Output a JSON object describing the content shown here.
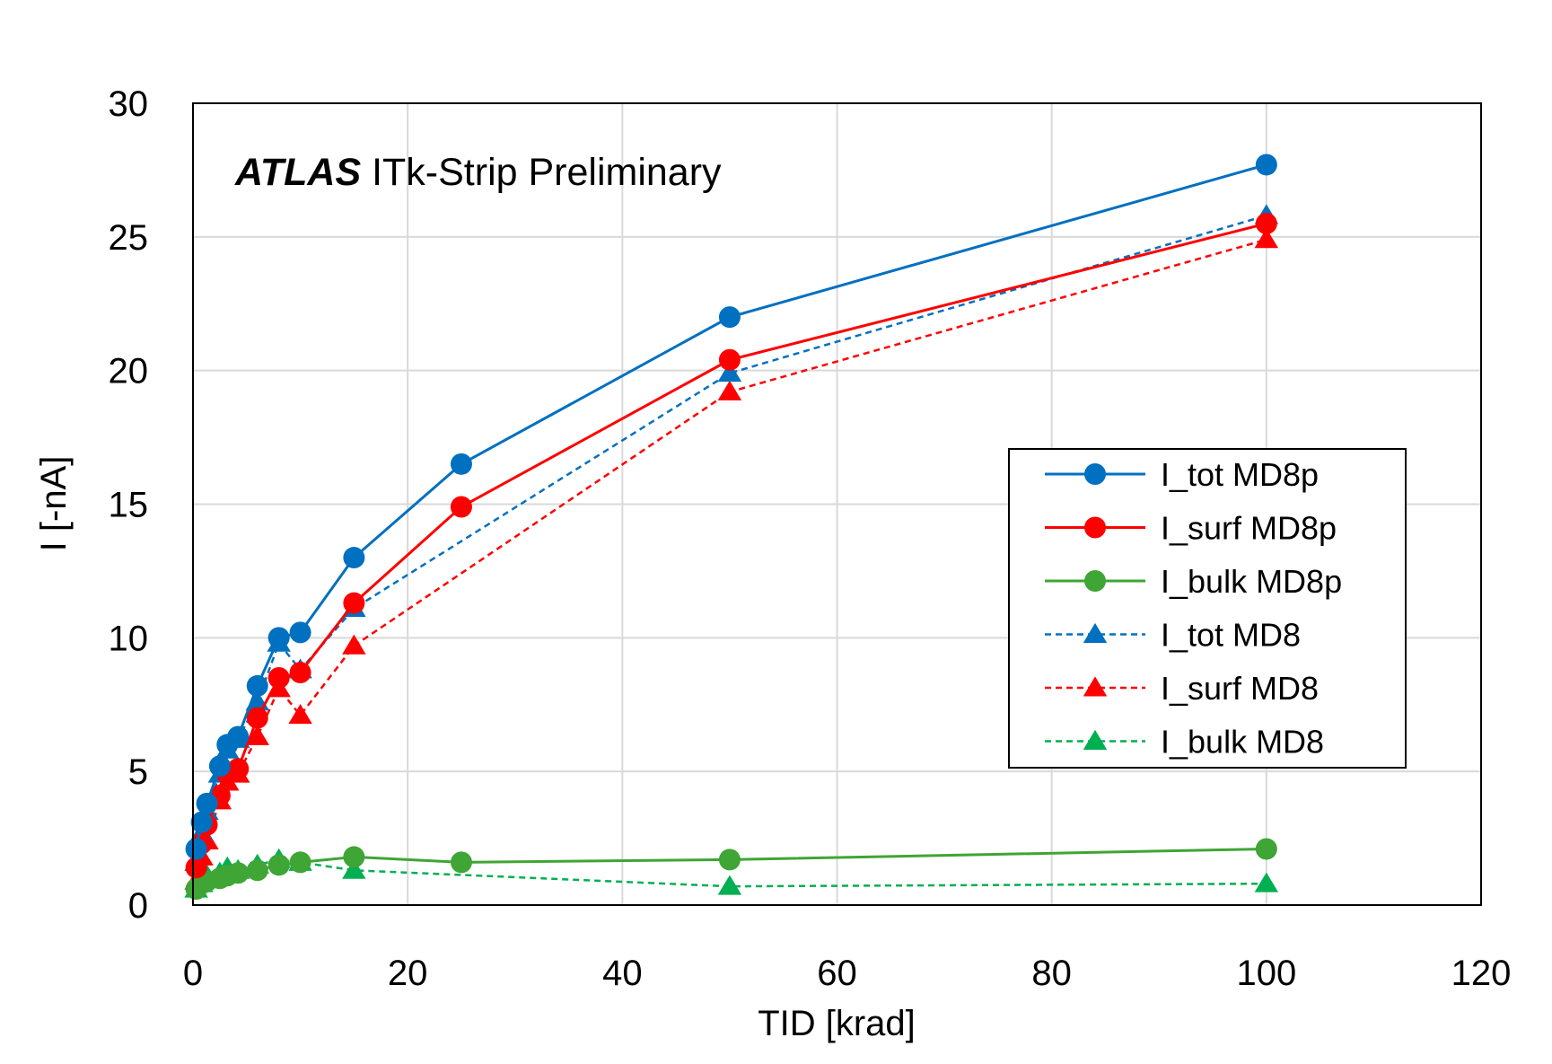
{
  "chart_data": {
    "type": "line",
    "title": "",
    "annotation": {
      "bold_italic": "ATLAS",
      "rest": " ITk-Strip Preliminary"
    },
    "xlabel": "TID [krad]",
    "ylabel": "I [-nA]",
    "xlim": [
      0,
      120
    ],
    "ylim": [
      0,
      30
    ],
    "xticks": [
      0,
      20,
      40,
      60,
      80,
      100,
      120
    ],
    "yticks": [
      0,
      5,
      10,
      15,
      20,
      25,
      30
    ],
    "grid": true,
    "legend_position": "right",
    "series": [
      {
        "name": "I_tot MD8p",
        "color": "#0070C0",
        "marker": "circle",
        "dash": "solid",
        "x": [
          0.3,
          0.8,
          1.3,
          2.5,
          3.2,
          4.2,
          6,
          8,
          10,
          15,
          25,
          50,
          100
        ],
        "y": [
          2.1,
          3.1,
          3.8,
          5.2,
          6.0,
          6.3,
          8.2,
          10.0,
          10.2,
          13.0,
          16.5,
          22.0,
          27.7
        ]
      },
      {
        "name": "I_surf MD8p",
        "color": "#FF0000",
        "marker": "circle",
        "dash": "solid",
        "x": [
          0.3,
          0.8,
          1.3,
          2.5,
          3.2,
          4.2,
          6,
          8,
          10,
          15,
          25,
          50,
          100
        ],
        "y": [
          1.4,
          2.3,
          3.0,
          4.1,
          4.9,
          5.1,
          7.0,
          8.5,
          8.7,
          11.3,
          14.9,
          20.4,
          25.5
        ]
      },
      {
        "name": "I_bulk MD8p",
        "color": "#3FA535",
        "marker": "circle",
        "dash": "solid",
        "x": [
          0.3,
          0.8,
          1.3,
          2.5,
          3.2,
          4.2,
          6,
          8,
          10,
          15,
          25,
          50,
          100
        ],
        "y": [
          0.6,
          0.8,
          0.9,
          1.0,
          1.1,
          1.2,
          1.3,
          1.5,
          1.6,
          1.8,
          1.6,
          1.7,
          2.1
        ]
      },
      {
        "name": "I_tot MD8",
        "color": "#0070C0",
        "marker": "triangle",
        "dash": "dashed",
        "x": [
          0.3,
          0.8,
          1.3,
          2.5,
          3.2,
          4.2,
          6,
          8,
          10,
          15,
          50,
          100
        ],
        "y": [
          1.6,
          2.7,
          3.5,
          4.9,
          5.8,
          6.2,
          7.6,
          9.8,
          8.8,
          11.1,
          19.9,
          25.8
        ]
      },
      {
        "name": "I_surf MD8",
        "color": "#FF0000",
        "marker": "triangle",
        "dash": "dashed",
        "x": [
          0.3,
          0.8,
          1.3,
          2.5,
          3.2,
          4.2,
          6,
          8,
          10,
          15,
          50,
          100
        ],
        "y": [
          0.9,
          1.8,
          2.4,
          3.9,
          4.6,
          4.9,
          6.3,
          8.1,
          7.1,
          9.7,
          19.2,
          24.9
        ]
      },
      {
        "name": "I_bulk MD8",
        "color": "#00B050",
        "marker": "triangle",
        "dash": "dashed",
        "x": [
          0.3,
          0.8,
          1.3,
          2.5,
          3.2,
          4.2,
          6,
          8,
          10,
          15,
          50,
          100
        ],
        "y": [
          0.6,
          0.8,
          1.1,
          1.2,
          1.4,
          1.3,
          1.5,
          1.7,
          1.6,
          1.3,
          0.7,
          0.8
        ]
      }
    ]
  }
}
